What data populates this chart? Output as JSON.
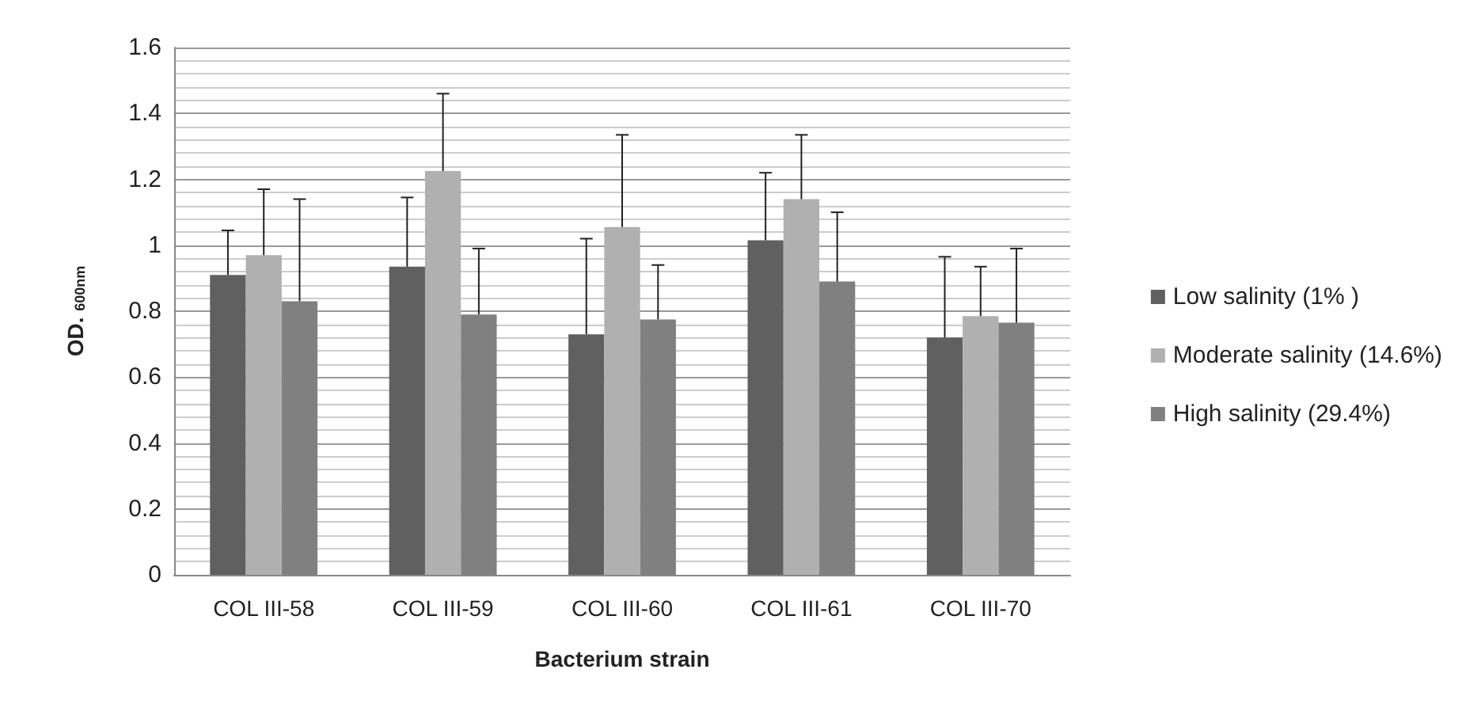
{
  "chart_data": {
    "type": "bar",
    "xlabel": "Bacterium strain",
    "ylabel": "OD. $_{600nm}$",
    "categories": [
      "COL III-58",
      "COL III-59",
      "COL III-60",
      "COL III-61",
      "COL III-70"
    ],
    "series": [
      {
        "name": "Low salinity (1% )",
        "color": "#606060",
        "values": [
          0.91,
          0.935,
          0.73,
          1.015,
          0.72
        ],
        "errors": [
          [
            0.91,
            1.045
          ],
          [
            0.935,
            1.145
          ],
          [
            0.73,
            1.02
          ],
          [
            1.015,
            1.22
          ],
          [
            0.72,
            0.965
          ]
        ]
      },
      {
        "name": "Moderate salinity (14.6%)",
        "color": "#b0b0b0",
        "values": [
          0.97,
          1.225,
          1.055,
          1.14,
          0.785
        ],
        "errors": [
          [
            0.97,
            1.17
          ],
          [
            1.225,
            1.46
          ],
          [
            1.055,
            1.335
          ],
          [
            1.14,
            1.335
          ],
          [
            0.785,
            0.935
          ]
        ]
      },
      {
        "name": "High salinity (29.4%)",
        "color": "#808080",
        "values": [
          0.83,
          0.79,
          0.775,
          0.89,
          0.765
        ],
        "errors": [
          [
            0.83,
            1.14
          ],
          [
            0.79,
            0.99
          ],
          [
            0.775,
            0.94
          ],
          [
            0.89,
            1.1
          ],
          [
            0.765,
            0.99
          ]
        ]
      }
    ],
    "ylim": [
      0,
      1.6
    ],
    "yticks": [
      0,
      0.2,
      0.4,
      0.6,
      0.8,
      1,
      1.2,
      1.4,
      1.6
    ],
    "grid": "y",
    "legend": "right"
  }
}
